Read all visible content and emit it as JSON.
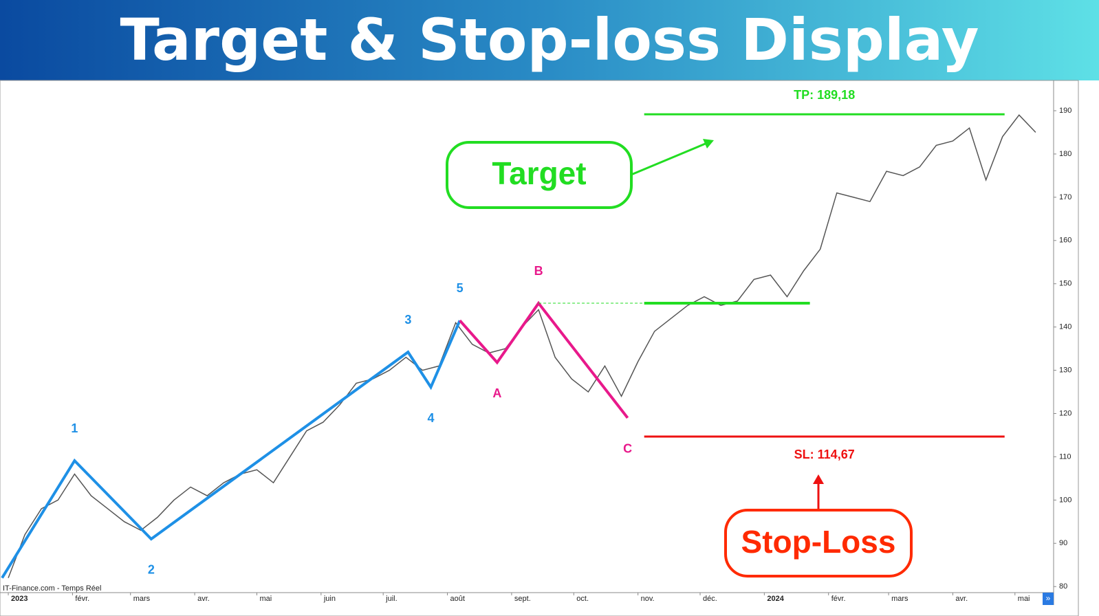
{
  "header": {
    "title": "Target & Stop-loss Display"
  },
  "chart_data": {
    "type": "line",
    "watermark": "IT-Finance.com - Temps Réel",
    "xlim": [
      -4,
      504
    ],
    "xticks": [
      {
        "value": 0,
        "label": "2023"
      },
      {
        "value": 31,
        "label": "févr."
      },
      {
        "value": 59,
        "label": "mars"
      },
      {
        "value": 90,
        "label": "avr."
      },
      {
        "value": 120,
        "label": "mai"
      },
      {
        "value": 151,
        "label": "juin"
      },
      {
        "value": 181,
        "label": "juil."
      },
      {
        "value": 212,
        "label": "août"
      },
      {
        "value": 243,
        "label": "sept."
      },
      {
        "value": 273,
        "label": "oct."
      },
      {
        "value": 304,
        "label": "nov."
      },
      {
        "value": 334,
        "label": "déc."
      },
      {
        "value": 365,
        "label": "2024"
      },
      {
        "value": 396,
        "label": "févr."
      },
      {
        "value": 425,
        "label": "mars"
      },
      {
        "value": 456,
        "label": "avr."
      },
      {
        "value": 486,
        "label": "mai"
      }
    ],
    "ylim": [
      78.6,
      197
    ],
    "yticks": [
      80,
      90,
      100,
      110,
      120,
      130,
      140,
      150,
      160,
      170,
      180,
      190
    ],
    "price": {
      "color": "#555555",
      "x": [
        0,
        8,
        16,
        24,
        32,
        40,
        48,
        56,
        64,
        72,
        80,
        88,
        96,
        104,
        112,
        120,
        128,
        136,
        144,
        152,
        160,
        168,
        176,
        184,
        192,
        200,
        208,
        216,
        224,
        232,
        240,
        248,
        256,
        264,
        272,
        280,
        288,
        296,
        304,
        312,
        320,
        328,
        336,
        344,
        352,
        360,
        368,
        376,
        384,
        392,
        400,
        408,
        416,
        424,
        432,
        440,
        448,
        456,
        464,
        472,
        480,
        488,
        496
      ],
      "values": [
        82,
        92,
        98,
        100,
        106,
        101,
        98,
        95,
        93,
        96,
        100,
        103,
        101,
        104,
        106,
        107,
        104,
        110,
        116,
        118,
        122,
        127,
        128,
        130,
        133,
        130,
        131,
        141,
        136,
        134,
        135,
        140,
        144,
        133,
        128,
        125,
        131,
        124,
        132,
        139,
        142,
        145,
        147,
        145,
        146,
        151,
        152,
        147,
        153,
        158,
        171,
        170,
        169,
        176,
        175,
        177,
        182,
        183,
        186,
        174,
        184,
        189,
        185
      ]
    },
    "series": [
      {
        "color": "#1e90e6",
        "x": [
          -3,
          32,
          69,
          193,
          204,
          218
        ],
        "values": [
          82,
          109.1,
          91,
          134.2,
          126.1,
          141.5
        ],
        "labels": [
          null,
          "1",
          "2",
          "3",
          "4",
          "5"
        ]
      },
      {
        "color": "#e8198b",
        "x": [
          218,
          236,
          256,
          299
        ],
        "values": [
          141.5,
          131.8,
          145.5,
          119
        ],
        "labels": [
          null,
          "A",
          "B",
          "C"
        ]
      }
    ],
    "levels": [
      {
        "value": 189.18,
        "label": "TP: 189,18",
        "color": "#22dd22",
        "x": [
          307,
          481
        ]
      },
      {
        "value": 145.5,
        "color": "#22dd22",
        "x": [
          307,
          387
        ]
      },
      {
        "value": 114.67,
        "label": "SL: 114,67",
        "color": "#ee1111",
        "x": [
          307,
          481
        ]
      }
    ],
    "annotations": [
      "Target",
      "Stop-Loss"
    ]
  }
}
